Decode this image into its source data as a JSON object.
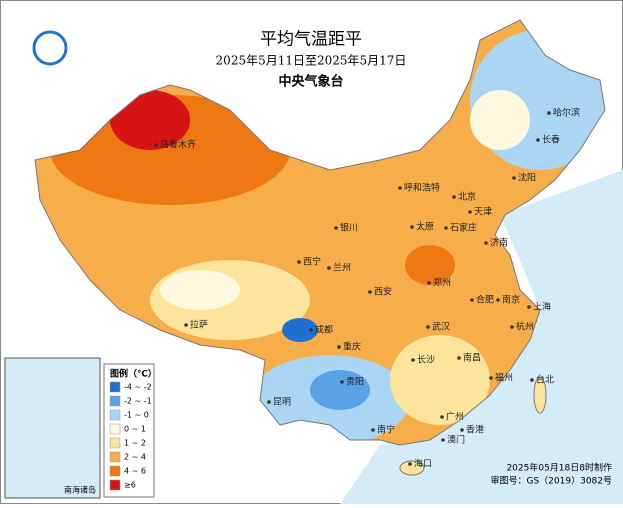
{
  "header": {
    "title": "平均气温距平",
    "subtitle": "2025年5月11日至2025年5月17日",
    "org": "中央气象台"
  },
  "legend": {
    "title": "图例（℃）",
    "items": [
      {
        "label": "-4 ~ -2",
        "color": "#1f6fd0"
      },
      {
        "label": "-2 ~ -1",
        "color": "#5aa2e6"
      },
      {
        "label": "-1 ~ 0",
        "color": "#aad6f3"
      },
      {
        "label": "0 ~ 1",
        "color": "#fdf9df"
      },
      {
        "label": "1 ~ 2",
        "color": "#fde49b"
      },
      {
        "label": "2 ~ 4",
        "color": "#f6ad4a"
      },
      {
        "label": "4 ~ 6",
        "color": "#ee7812"
      },
      {
        "label": "≥6",
        "color": "#d61414"
      }
    ]
  },
  "cities": [
    "乌鲁木齐",
    "哈尔滨",
    "长春",
    "沈阳",
    "呼和浩特",
    "北京",
    "天津",
    "银川",
    "太原",
    "石家庄",
    "济南",
    "西宁",
    "兰州",
    "郑州",
    "西安",
    "合肥",
    "南京",
    "上海",
    "拉萨",
    "成都",
    "武汉",
    "杭州",
    "重庆",
    "长沙",
    "南昌",
    "贵阳",
    "福州",
    "台北",
    "昆明",
    "广州",
    "香港",
    "澳门",
    "南宁",
    "海口"
  ],
  "inset": {
    "label": "南海诸岛"
  },
  "footer": {
    "made": "2025年05月18日8时制作",
    "approval": "审图号：GS（2019）3082号"
  }
}
